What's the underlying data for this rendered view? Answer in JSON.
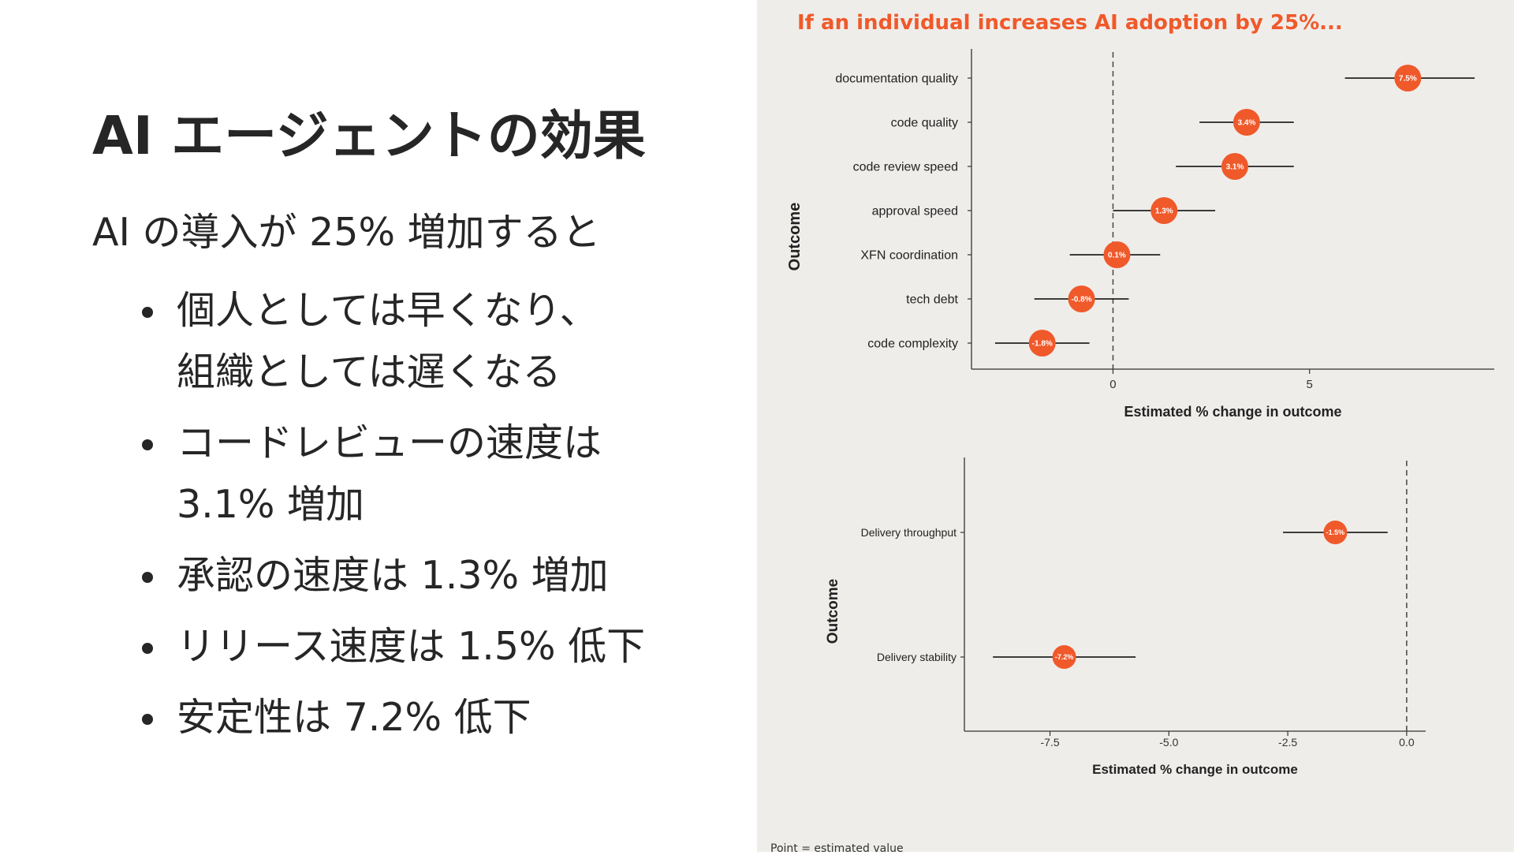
{
  "slide": {
    "title": "AI エージェントの効果",
    "lead": "AI の導入が 25% 増加すると",
    "bullets": [
      {
        "lines": [
          "個人としては早くなり、",
          "組織としては遅くなる"
        ]
      },
      {
        "lines": [
          "コードレビューの速度は",
          "3.1% 増加"
        ]
      },
      {
        "lines": [
          "承認の速度は 1.3% 増加"
        ]
      },
      {
        "lines": [
          "リリース速度は 1.5% 低下"
        ]
      },
      {
        "lines": [
          "安定性は 7.2% 低下"
        ]
      }
    ]
  },
  "chart_title": "If an individual increases AI adoption by 25%...",
  "footnote": "Point = estimated value",
  "colors": {
    "accent": "#f0592a",
    "background": "#efedea",
    "text": "#262626"
  },
  "chart_data": [
    {
      "type": "scatter",
      "title": "If an individual increases AI adoption by 25%...",
      "xlabel": "Estimated % change in outcome",
      "ylabel": "Outcome",
      "xlim": [
        -3.6,
        9.7
      ],
      "xticks": [
        "0",
        "5"
      ],
      "xtick_values": [
        0,
        5
      ],
      "reference_line": 0,
      "points": [
        {
          "category": "documentation quality",
          "value": 7.5,
          "low": 5.9,
          "high": 9.2,
          "label": "7.5%"
        },
        {
          "category": "code quality",
          "value": 3.4,
          "low": 2.2,
          "high": 4.6,
          "label": "3.4%"
        },
        {
          "category": "code review speed",
          "value": 3.1,
          "low": 1.6,
          "high": 4.6,
          "label": "3.1%"
        },
        {
          "category": "approval speed",
          "value": 1.3,
          "low": 0.0,
          "high": 2.6,
          "label": "1.3%"
        },
        {
          "category": "XFN coordination",
          "value": 0.1,
          "low": -1.1,
          "high": 1.2,
          "label": "0.1%"
        },
        {
          "category": "tech debt",
          "value": -0.8,
          "low": -2.0,
          "high": 0.4,
          "label": "-0.8%"
        },
        {
          "category": "code complexity",
          "value": -1.8,
          "low": -3.0,
          "high": -0.6,
          "label": "-1.8%"
        }
      ]
    },
    {
      "type": "scatter",
      "xlabel": "Estimated % change in outcome",
      "ylabel": "Outcome",
      "xlim": [
        -9.3,
        0.4
      ],
      "xticks": [
        "-7.5",
        "-5.0",
        "-2.5",
        "0.0"
      ],
      "xtick_values": [
        -7.5,
        -5.0,
        -2.5,
        0.0
      ],
      "reference_line": 0,
      "points": [
        {
          "category": "Delivery throughput",
          "value": -1.5,
          "low": -2.6,
          "high": -0.4,
          "label": "-1.5%"
        },
        {
          "category": "Delivery stability",
          "value": -7.2,
          "low": -8.7,
          "high": -5.7,
          "label": "-7.2%"
        }
      ]
    }
  ]
}
